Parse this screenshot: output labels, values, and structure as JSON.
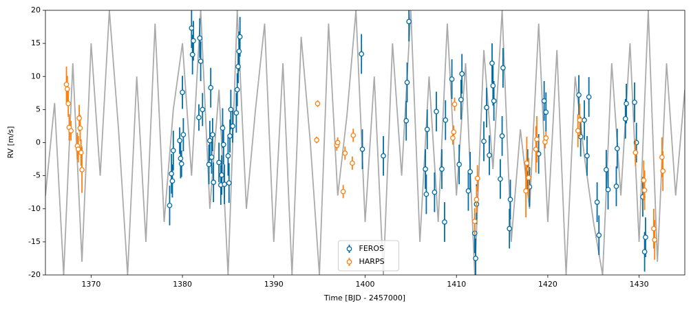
{
  "chart_data": {
    "type": "scatter",
    "xlabel": "Time [BJD - 2457000]",
    "ylabel": "RV [m/s]",
    "xlim": [
      1365,
      1435
    ],
    "ylim": [
      -20,
      20
    ],
    "xticks": [
      1370,
      1380,
      1390,
      1400,
      1410,
      1420,
      1430
    ],
    "yticks": [
      -20,
      -15,
      -10,
      -5,
      0,
      5,
      10,
      15,
      20
    ],
    "legend": "lower center",
    "series": [
      {
        "name": "FEROS",
        "color": "#006ba4",
        "x": [
          1378.6,
          1378.8,
          1379.0,
          1378.9,
          1379.7,
          1379.8,
          1379.9,
          1380.0,
          1380.1,
          1381.0,
          1381.1,
          1381.2,
          1381.8,
          1381.9,
          1382.0,
          1382.2,
          1382.9,
          1383.0,
          1383.1,
          1383.2,
          1383.3,
          1383.4,
          1384.0,
          1384.2,
          1384.3,
          1384.4,
          1384.5,
          1384.6,
          1385.0,
          1385.1,
          1385.2,
          1385.3,
          1385.5,
          1385.9,
          1386.0,
          1386.1,
          1386.2,
          1386.3,
          1399.6,
          1399.7,
          1402.0,
          1404.6,
          1404.8,
          1404.5,
          1406.6,
          1406.7,
          1406.8,
          1407.6,
          1407.8,
          1408.4,
          1408.8,
          1408.7,
          1409.5,
          1410.3,
          1410.5,
          1410.6,
          1411.3,
          1411.5,
          1412.0,
          1412.1,
          1412.2,
          1413.0,
          1413.3,
          1413.6,
          1413.9,
          1414.0,
          1414.1,
          1414.8,
          1415.0,
          1415.1,
          1415.8,
          1415.9,
          1417.8,
          1418.0,
          1419.0,
          1419.6,
          1419.8,
          1423.4,
          1423.6,
          1424.0,
          1424.3,
          1424.5,
          1425.4,
          1425.6,
          1426.4,
          1426.6,
          1427.5,
          1427.6,
          1428.5,
          1428.6,
          1429.5,
          1429.7,
          1430.4,
          1430.6,
          1430.7
        ],
        "values": [
          -9.5,
          -4.7,
          -1.2,
          -5.8,
          0.3,
          -2.4,
          -3.2,
          7.6,
          1.2,
          17.3,
          13.3,
          15.4,
          3.8,
          15.8,
          12.3,
          5.0,
          -3.3,
          0.3,
          8.3,
          -2.2,
          1.2,
          -6.0,
          -3.0,
          -6.4,
          -4.9,
          2.2,
          -0.3,
          -6.3,
          -2.0,
          -6.1,
          1.0,
          5.0,
          2.5,
          4.5,
          8.0,
          11.5,
          13.8,
          16.0,
          13.4,
          -1.0,
          -2.0,
          9.1,
          18.3,
          3.3,
          -4.0,
          -7.8,
          2.0,
          -7.5,
          4.7,
          -4.0,
          3.4,
          -12.0,
          9.6,
          -3.3,
          6.5,
          10.4,
          -7.3,
          -4.4,
          -13.7,
          -17.5,
          -9.3,
          0.2,
          5.3,
          -1.9,
          12.0,
          8.6,
          6.3,
          -5.5,
          1.0,
          11.3,
          -13.0,
          -8.6,
          -4.0,
          -6.7,
          -1.7,
          6.3,
          4.6,
          7.2,
          0.9,
          3.4,
          -2.0,
          6.9,
          -9.0,
          -14.0,
          -4.1,
          -7.1,
          -6.6,
          -0.9,
          3.6,
          5.9,
          6.1,
          0.0,
          -8.2,
          -16.5,
          -14.3
        ],
        "errors": [
          3,
          3,
          3,
          2.5,
          2,
          3,
          2,
          2.5,
          2.5,
          3,
          3,
          3,
          2,
          3,
          3,
          2.5,
          3,
          3,
          3,
          2.5,
          2.5,
          3,
          3,
          3,
          3,
          3,
          3,
          3,
          3,
          3,
          2.5,
          3,
          2.5,
          3,
          2.5,
          2.5,
          3,
          3,
          3,
          3,
          3,
          3,
          3,
          3,
          3,
          3,
          3,
          3,
          3,
          3,
          3,
          3,
          3,
          3,
          3,
          3,
          3,
          3,
          3,
          3,
          3,
          3,
          3,
          3,
          3,
          3,
          3,
          3,
          3,
          3,
          3,
          3,
          3,
          3,
          3,
          3,
          3,
          3,
          3,
          3,
          3,
          3,
          3,
          3,
          3,
          3,
          3,
          3,
          3,
          3,
          3,
          3,
          3,
          3,
          3
        ]
      },
      {
        "name": "HARPS",
        "color": "#ff800e",
        "x": [
          1367.3,
          1367.4,
          1367.5,
          1367.6,
          1367.8,
          1368.5,
          1368.6,
          1368.7,
          1368.8,
          1368.9,
          1369.0,
          1394.8,
          1394.7,
          1396.9,
          1397.0,
          1397.6,
          1397.8,
          1398.6,
          1398.7,
          1409.6,
          1409.7,
          1409.8,
          1412.2,
          1412.3,
          1412.0,
          1417.7,
          1417.6,
          1417.9,
          1418.7,
          1418.8,
          1419.7,
          1419.8,
          1423.3,
          1423.5,
          1429.6,
          1430.5,
          1430.6,
          1431.6,
          1431.7,
          1432.5,
          1432.6
        ],
        "values": [
          8.8,
          8.1,
          5.9,
          2.3,
          1.8,
          -0.5,
          -1.0,
          3.7,
          2.2,
          -1.5,
          -4.1,
          5.9,
          0.4,
          -0.4,
          0.0,
          -7.4,
          -1.6,
          -3.1,
          1.1,
          0.7,
          1.6,
          5.8,
          -8.6,
          -5.4,
          -11.9,
          -3.1,
          -7.3,
          -5.3,
          -1.0,
          0.5,
          0.1,
          0.7,
          1.8,
          3.4,
          -1.5,
          -5.7,
          -7.2,
          -13.0,
          -14.7,
          -2.2,
          -4.3
        ],
        "errors": [
          2.7,
          2,
          2,
          2,
          1.5,
          2,
          2,
          2,
          2,
          2,
          3.5,
          0.5,
          0.5,
          0.8,
          0.8,
          1,
          1,
          1,
          1,
          1,
          1,
          1,
          2,
          2,
          2,
          4,
          4,
          3,
          3.5,
          3.5,
          1,
          1,
          2.5,
          2.5,
          2,
          3,
          3,
          3,
          3,
          3,
          3
        ]
      }
    ],
    "model": {
      "color": "#aaaaaa",
      "x": [
        1365,
        1366,
        1367,
        1368,
        1369,
        1370,
        1371,
        1372,
        1373,
        1374,
        1375,
        1376,
        1377,
        1378,
        1379,
        1380,
        1381,
        1382,
        1383,
        1384,
        1385,
        1386,
        1387,
        1388,
        1389,
        1390,
        1391,
        1392,
        1393,
        1394,
        1395,
        1396,
        1397,
        1398,
        1399,
        1400,
        1401,
        1402,
        1403,
        1404,
        1405,
        1406,
        1407,
        1408,
        1409,
        1410,
        1411,
        1412,
        1413,
        1414,
        1415,
        1416,
        1417,
        1418,
        1419,
        1420,
        1421,
        1422,
        1423,
        1424,
        1425,
        1426,
        1427,
        1428,
        1429,
        1430,
        1431,
        1432,
        1433,
        1434,
        1435
      ],
      "values": [
        -8,
        6,
        -20,
        12,
        -18,
        15,
        -5,
        20,
        2,
        -20,
        10,
        -15,
        18,
        -12,
        5,
        15,
        -5,
        20,
        -10,
        8,
        -20,
        20,
        -10,
        5,
        18,
        -15,
        12,
        -20,
        16,
        0,
        -20,
        18,
        -8,
        4,
        20,
        -12,
        10,
        -20,
        15,
        -5,
        20,
        -15,
        10,
        -12,
        18,
        -8,
        12,
        -20,
        14,
        -4,
        20,
        -15,
        2,
        -10,
        18,
        -12,
        14,
        -20,
        10,
        -2,
        -12,
        -20,
        12,
        -8,
        15,
        -15,
        20,
        -18,
        12,
        -8,
        8
      ]
    }
  }
}
